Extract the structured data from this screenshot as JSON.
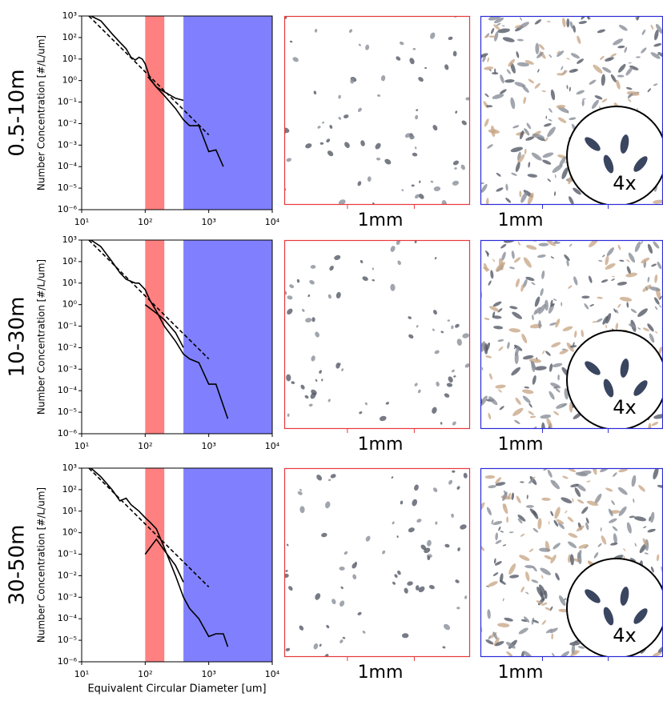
{
  "chart_data": [
    {
      "type": "line",
      "row_label": "0.5-10m",
      "ylabel": "Number Concentration [#/L/um]",
      "xscale": "log",
      "yscale": "log",
      "xlim": [
        10,
        10000
      ],
      "ylim": [
        1e-06,
        1000
      ],
      "xticks": [
        {
          "value": 10,
          "label": "10¹"
        },
        {
          "value": 100,
          "label": "10²"
        },
        {
          "value": 1000,
          "label": "10³"
        },
        {
          "value": 10000,
          "label": "10⁴"
        }
      ],
      "yticks": [
        {
          "value": 1e-06,
          "label": "10⁻⁶"
        },
        {
          "value": 1e-05,
          "label": "10⁻⁵"
        },
        {
          "value": 0.0001,
          "label": "10⁻⁴"
        },
        {
          "value": 0.001,
          "label": "10⁻³"
        },
        {
          "value": 0.01,
          "label": "10⁻²"
        },
        {
          "value": 0.1,
          "label": "10⁻¹"
        },
        {
          "value": 1,
          "label": "10⁰"
        },
        {
          "value": 10,
          "label": "10¹"
        },
        {
          "value": 100,
          "label": "10²"
        },
        {
          "value": 1000,
          "label": "10³"
        }
      ],
      "bands": [
        {
          "range": [
            100,
            200
          ],
          "color": "#ff8080"
        },
        {
          "range": [
            400,
            10000
          ],
          "color": "#8080ff"
        }
      ],
      "series": [
        {
          "color": "#000000",
          "style": "solid",
          "x": [
            14,
            20,
            30,
            40,
            50,
            60,
            70,
            80,
            90,
            100,
            120,
            150,
            200,
            300,
            400,
            500,
            700,
            1000,
            1300,
            1700
          ],
          "values": [
            1000,
            600,
            150,
            60,
            30,
            12,
            9,
            12,
            10,
            6,
            1.2,
            0.5,
            0.2,
            0.05,
            0.015,
            0.008,
            0.008,
            0.0005,
            0.0006,
            0.0001
          ]
        },
        {
          "color": "#000000",
          "style": "solid",
          "x": [
            110,
            150,
            200,
            300,
            400
          ],
          "values": [
            1.5,
            0.5,
            0.3,
            0.15,
            0.12
          ]
        },
        {
          "color": "#000000",
          "style": "dashed",
          "x": [
            13,
            1000
          ],
          "values": [
            1000,
            0.003
          ]
        }
      ]
    },
    {
      "type": "line",
      "row_label": "10-30m",
      "ylabel": "Number Concentration [#/L/um]",
      "xscale": "log",
      "yscale": "log",
      "xlim": [
        10,
        10000
      ],
      "ylim": [
        1e-06,
        1000
      ],
      "xticks": [
        {
          "value": 10,
          "label": "10¹"
        },
        {
          "value": 100,
          "label": "10²"
        },
        {
          "value": 1000,
          "label": "10³"
        },
        {
          "value": 10000,
          "label": "10⁴"
        }
      ],
      "yticks": [
        {
          "value": 1e-06,
          "label": "10⁻⁶"
        },
        {
          "value": 1e-05,
          "label": "10⁻⁵"
        },
        {
          "value": 0.0001,
          "label": "10⁻⁴"
        },
        {
          "value": 0.001,
          "label": "10⁻³"
        },
        {
          "value": 0.01,
          "label": "10⁻²"
        },
        {
          "value": 0.1,
          "label": "10⁻¹"
        },
        {
          "value": 1,
          "label": "10⁰"
        },
        {
          "value": 10,
          "label": "10¹"
        },
        {
          "value": 100,
          "label": "10²"
        },
        {
          "value": 1000,
          "label": "10³"
        }
      ],
      "bands": [
        {
          "range": [
            100,
            200
          ],
          "color": "#ff8080"
        },
        {
          "range": [
            400,
            10000
          ],
          "color": "#8080ff"
        }
      ],
      "series": [
        {
          "color": "#000000",
          "style": "solid",
          "x": [
            14,
            20,
            30,
            40,
            50,
            60,
            70,
            80,
            100,
            120,
            150,
            200,
            300,
            400,
            500,
            700,
            1000,
            1300,
            1700,
            2000
          ],
          "values": [
            1000,
            500,
            100,
            30,
            15,
            12,
            10,
            10,
            5,
            1.5,
            0.5,
            0.1,
            0.02,
            0.005,
            0.003,
            0.002,
            0.0002,
            0.0002,
            2e-05,
            5e-06
          ]
        },
        {
          "color": "#000000",
          "style": "solid",
          "x": [
            100,
            150,
            200,
            300,
            400
          ],
          "values": [
            1,
            0.4,
            0.2,
            0.05,
            0.01
          ]
        },
        {
          "color": "#000000",
          "style": "dashed",
          "x": [
            13,
            1000
          ],
          "values": [
            1000,
            0.003
          ]
        }
      ]
    },
    {
      "type": "line",
      "row_label": "30-50m",
      "ylabel": "Number Concentration [#/L/um]",
      "xlabel": "Equivalent Circular Diameter [um]",
      "xscale": "log",
      "yscale": "log",
      "xlim": [
        10,
        10000
      ],
      "ylim": [
        1e-06,
        1000
      ],
      "xticks": [
        {
          "value": 10,
          "label": "10¹"
        },
        {
          "value": 100,
          "label": "10²"
        },
        {
          "value": 1000,
          "label": "10³"
        },
        {
          "value": 10000,
          "label": "10⁴"
        }
      ],
      "yticks": [
        {
          "value": 1e-06,
          "label": "10⁻⁶"
        },
        {
          "value": 1e-05,
          "label": "10⁻⁵"
        },
        {
          "value": 0.0001,
          "label": "10⁻⁴"
        },
        {
          "value": 0.001,
          "label": "10⁻³"
        },
        {
          "value": 0.01,
          "label": "10⁻²"
        },
        {
          "value": 0.1,
          "label": "10⁻¹"
        },
        {
          "value": 1,
          "label": "10⁰"
        },
        {
          "value": 10,
          "label": "10¹"
        },
        {
          "value": 100,
          "label": "10²"
        },
        {
          "value": 1000,
          "label": "10³"
        }
      ],
      "bands": [
        {
          "range": [
            100,
            200
          ],
          "color": "#ff8080"
        },
        {
          "range": [
            400,
            10000
          ],
          "color": "#8080ff"
        }
      ],
      "series": [
        {
          "color": "#000000",
          "style": "solid",
          "x": [
            14,
            20,
            30,
            40,
            50,
            60,
            80,
            100,
            120,
            150,
            200,
            300,
            400,
            500,
            700,
            1000,
            1300,
            1700,
            2000
          ],
          "values": [
            1000,
            400,
            100,
            30,
            40,
            20,
            10,
            5,
            3,
            1.5,
            0.2,
            0.01,
            0.001,
            0.0003,
            0.0001,
            1.5e-05,
            2e-05,
            2e-05,
            5e-06
          ]
        },
        {
          "color": "#000000",
          "style": "solid",
          "x": [
            100,
            150,
            200,
            300,
            400
          ],
          "values": [
            0.1,
            0.5,
            0.15,
            0.03,
            0.005
          ]
        },
        {
          "color": "#000000",
          "style": "dashed",
          "x": [
            13,
            1000
          ],
          "values": [
            1000,
            0.003
          ]
        }
      ]
    }
  ],
  "image_panels": [
    {
      "left": {
        "scale_label": "1mm",
        "color": "#e8393c"
      },
      "right": {
        "scale_label": "1mm",
        "color": "#2a2ad8",
        "inset_label": "4x"
      }
    },
    {
      "left": {
        "scale_label": "1mm",
        "color": "#e8393c"
      },
      "right": {
        "scale_label": "1mm",
        "color": "#2a2ad8",
        "inset_label": "4x"
      }
    },
    {
      "left": {
        "scale_label": "1mm",
        "color": "#e8393c"
      },
      "right": {
        "scale_label": "1mm",
        "color": "#2a2ad8",
        "inset_label": "4x"
      }
    }
  ]
}
